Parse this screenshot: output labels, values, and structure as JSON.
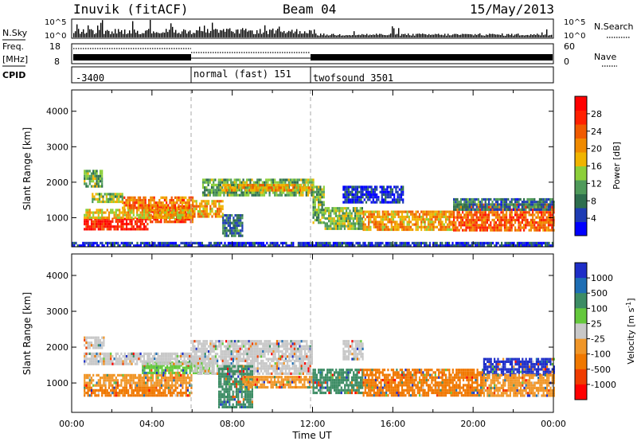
{
  "header": {
    "station": "Inuvik (fitACF)",
    "beam": "Beam 04",
    "date": "15/May/2013"
  },
  "left_labels": {
    "nsky": "N.Sky",
    "freq_line1": "Freq.",
    "freq_line2": "[MHz]",
    "cpid": "CPID"
  },
  "right_labels": {
    "nsearch": "N.Search",
    "nave": "Nave"
  },
  "noise_panel": {
    "left_ticks": [
      "10^5",
      "10^0"
    ],
    "right_ticks": [
      "10^5",
      "10^0"
    ]
  },
  "freq_panel": {
    "left_ticks": [
      "18",
      "8"
    ],
    "right_ticks": [
      "60",
      "0"
    ]
  },
  "cpid_panel": {
    "segments": [
      {
        "label": "-3400",
        "start_hour": 0,
        "end_hour": 6
      },
      {
        "label": "normal (fast) 151",
        "start_hour": 6,
        "end_hour": 12
      },
      {
        "label": "twofsound 3501",
        "start_hour": 12,
        "end_hour": 24
      }
    ]
  },
  "chart_data": [
    {
      "type": "heatmap",
      "name": "power",
      "ylabel": "Slant Range [km]",
      "xlabel": "Time UT",
      "xlim": [
        0,
        24
      ],
      "ylim": [
        180,
        4600
      ],
      "y_ticks": [
        1000,
        2000,
        3000,
        4000
      ],
      "y_tick_labels": [
        "1000",
        "2000",
        "3000",
        "4000"
      ],
      "colorbar": {
        "label": "Power [dB]",
        "range": [
          0,
          32
        ],
        "tick_labels": [
          "28",
          "24",
          "20",
          "16",
          "12",
          "8",
          "4"
        ],
        "tick_values": [
          28,
          24,
          20,
          16,
          12,
          8,
          4
        ],
        "colors": [
          "#0000ff",
          "#1e3cb4",
          "#2e6e4e",
          "#4f9a5a",
          "#8ccf3a",
          "#f0b400",
          "#f08a00",
          "#f05a00",
          "#ff2000",
          "#ff0000"
        ]
      },
      "regions": [
        {
          "t0": 0.6,
          "t1": 3.8,
          "r0": 650,
          "r1": 1000,
          "value": 28
        },
        {
          "t0": 3.8,
          "t1": 6.0,
          "r0": 900,
          "r1": 1350,
          "value": 26
        },
        {
          "t0": 0.6,
          "t1": 6.0,
          "r0": 1000,
          "r1": 1250,
          "value": 18
        },
        {
          "t0": 6.0,
          "t1": 7.5,
          "r0": 1000,
          "r1": 1500,
          "value": 20
        },
        {
          "t0": 2.5,
          "t1": 6.0,
          "r0": 1300,
          "r1": 1600,
          "value": 22
        },
        {
          "t0": 1.0,
          "t1": 2.5,
          "r0": 1450,
          "r1": 1700,
          "value": 14
        },
        {
          "t0": 0.6,
          "t1": 1.5,
          "r0": 1900,
          "r1": 2350,
          "value": 12
        },
        {
          "t0": 6.5,
          "t1": 12.0,
          "r0": 1600,
          "r1": 2100,
          "value": 12
        },
        {
          "t0": 7.5,
          "t1": 12.0,
          "r0": 1750,
          "r1": 1950,
          "value": 20
        },
        {
          "t0": 7.5,
          "t1": 8.5,
          "r0": 500,
          "r1": 1100,
          "value": 8
        },
        {
          "t0": 12.0,
          "t1": 12.6,
          "r0": 850,
          "r1": 1900,
          "value": 12
        },
        {
          "t0": 12.6,
          "t1": 14.5,
          "r0": 700,
          "r1": 1300,
          "value": 14
        },
        {
          "t0": 14.5,
          "t1": 19.0,
          "r0": 650,
          "r1": 1200,
          "value": 20
        },
        {
          "t0": 19.0,
          "t1": 24.0,
          "r0": 650,
          "r1": 1400,
          "value": 24
        },
        {
          "t0": 19.0,
          "t1": 24.0,
          "r0": 1250,
          "r1": 1550,
          "value": 8
        },
        {
          "t0": 13.5,
          "t1": 16.5,
          "r0": 1400,
          "r1": 1900,
          "value": 4
        },
        {
          "t0": 0,
          "t1": 24,
          "r0": 220,
          "r1": 320,
          "value": 4
        }
      ]
    },
    {
      "type": "heatmap",
      "name": "velocity",
      "ylabel": "Slant Range [km]",
      "xlabel": "Time UT",
      "xlim": [
        0,
        24
      ],
      "ylim": [
        180,
        4600
      ],
      "y_ticks": [
        1000,
        2000,
        3000,
        4000
      ],
      "y_tick_labels": [
        "1000",
        "2000",
        "3000",
        "4000"
      ],
      "x_ticks": [
        0,
        4,
        8,
        12,
        16,
        20,
        24
      ],
      "x_tick_labels": [
        "00:00",
        "04:00",
        "08:00",
        "12:00",
        "16:00",
        "20:00",
        "00:00"
      ],
      "colorbar": {
        "label_main": "Velocity  [m s",
        "label_exp": "-1",
        "label_close": "]",
        "tick_labels": [
          "1000",
          "500",
          "100",
          "25",
          "-25",
          "-100",
          "-500",
          "-1000"
        ],
        "colors": [
          "#1e2ec8",
          "#1e6eb4",
          "#3c8c64",
          "#64c83c",
          "#c8c8c8",
          "#f09628",
          "#f07800",
          "#f03c00",
          "#ff0000"
        ]
      },
      "regions": [
        {
          "t0": 0.6,
          "t1": 6.0,
          "r0": 650,
          "r1": 900,
          "color": "#f07800"
        },
        {
          "t0": 0.6,
          "t1": 6.0,
          "r0": 950,
          "r1": 1250,
          "color": "#f09628"
        },
        {
          "t0": 3.5,
          "t1": 7.0,
          "r0": 1250,
          "r1": 1600,
          "color": "#64c83c"
        },
        {
          "t0": 0.6,
          "t1": 6.0,
          "r0": 1500,
          "r1": 1850,
          "color": "#c8c8c8"
        },
        {
          "t0": 0.6,
          "t1": 1.6,
          "r0": 2000,
          "r1": 2300,
          "color": "#c8c8c8"
        },
        {
          "t0": 6.0,
          "t1": 12.0,
          "r0": 1700,
          "r1": 2200,
          "color": "#c8c8c8"
        },
        {
          "t0": 6.0,
          "t1": 12.0,
          "r0": 1250,
          "r1": 1650,
          "color": "#c8c8c8"
        },
        {
          "t0": 7.3,
          "t1": 9.0,
          "r0": 350,
          "r1": 1500,
          "color": "#3c8c64"
        },
        {
          "t0": 8.5,
          "t1": 12.0,
          "r0": 850,
          "r1": 1200,
          "color": "#f09628"
        },
        {
          "t0": 12.0,
          "t1": 14.5,
          "r0": 700,
          "r1": 1400,
          "color": "#3c8c64"
        },
        {
          "t0": 14.5,
          "t1": 20.5,
          "r0": 650,
          "r1": 1400,
          "color": "#f07800"
        },
        {
          "t0": 20.5,
          "t1": 24.0,
          "r0": 1250,
          "r1": 1700,
          "color": "#1e2ec8"
        },
        {
          "t0": 20.5,
          "t1": 24.0,
          "r0": 650,
          "r1": 1250,
          "color": "#f09628"
        },
        {
          "t0": 13.5,
          "t1": 14.5,
          "r0": 1700,
          "r1": 2200,
          "color": "#c8c8c8"
        }
      ]
    }
  ]
}
